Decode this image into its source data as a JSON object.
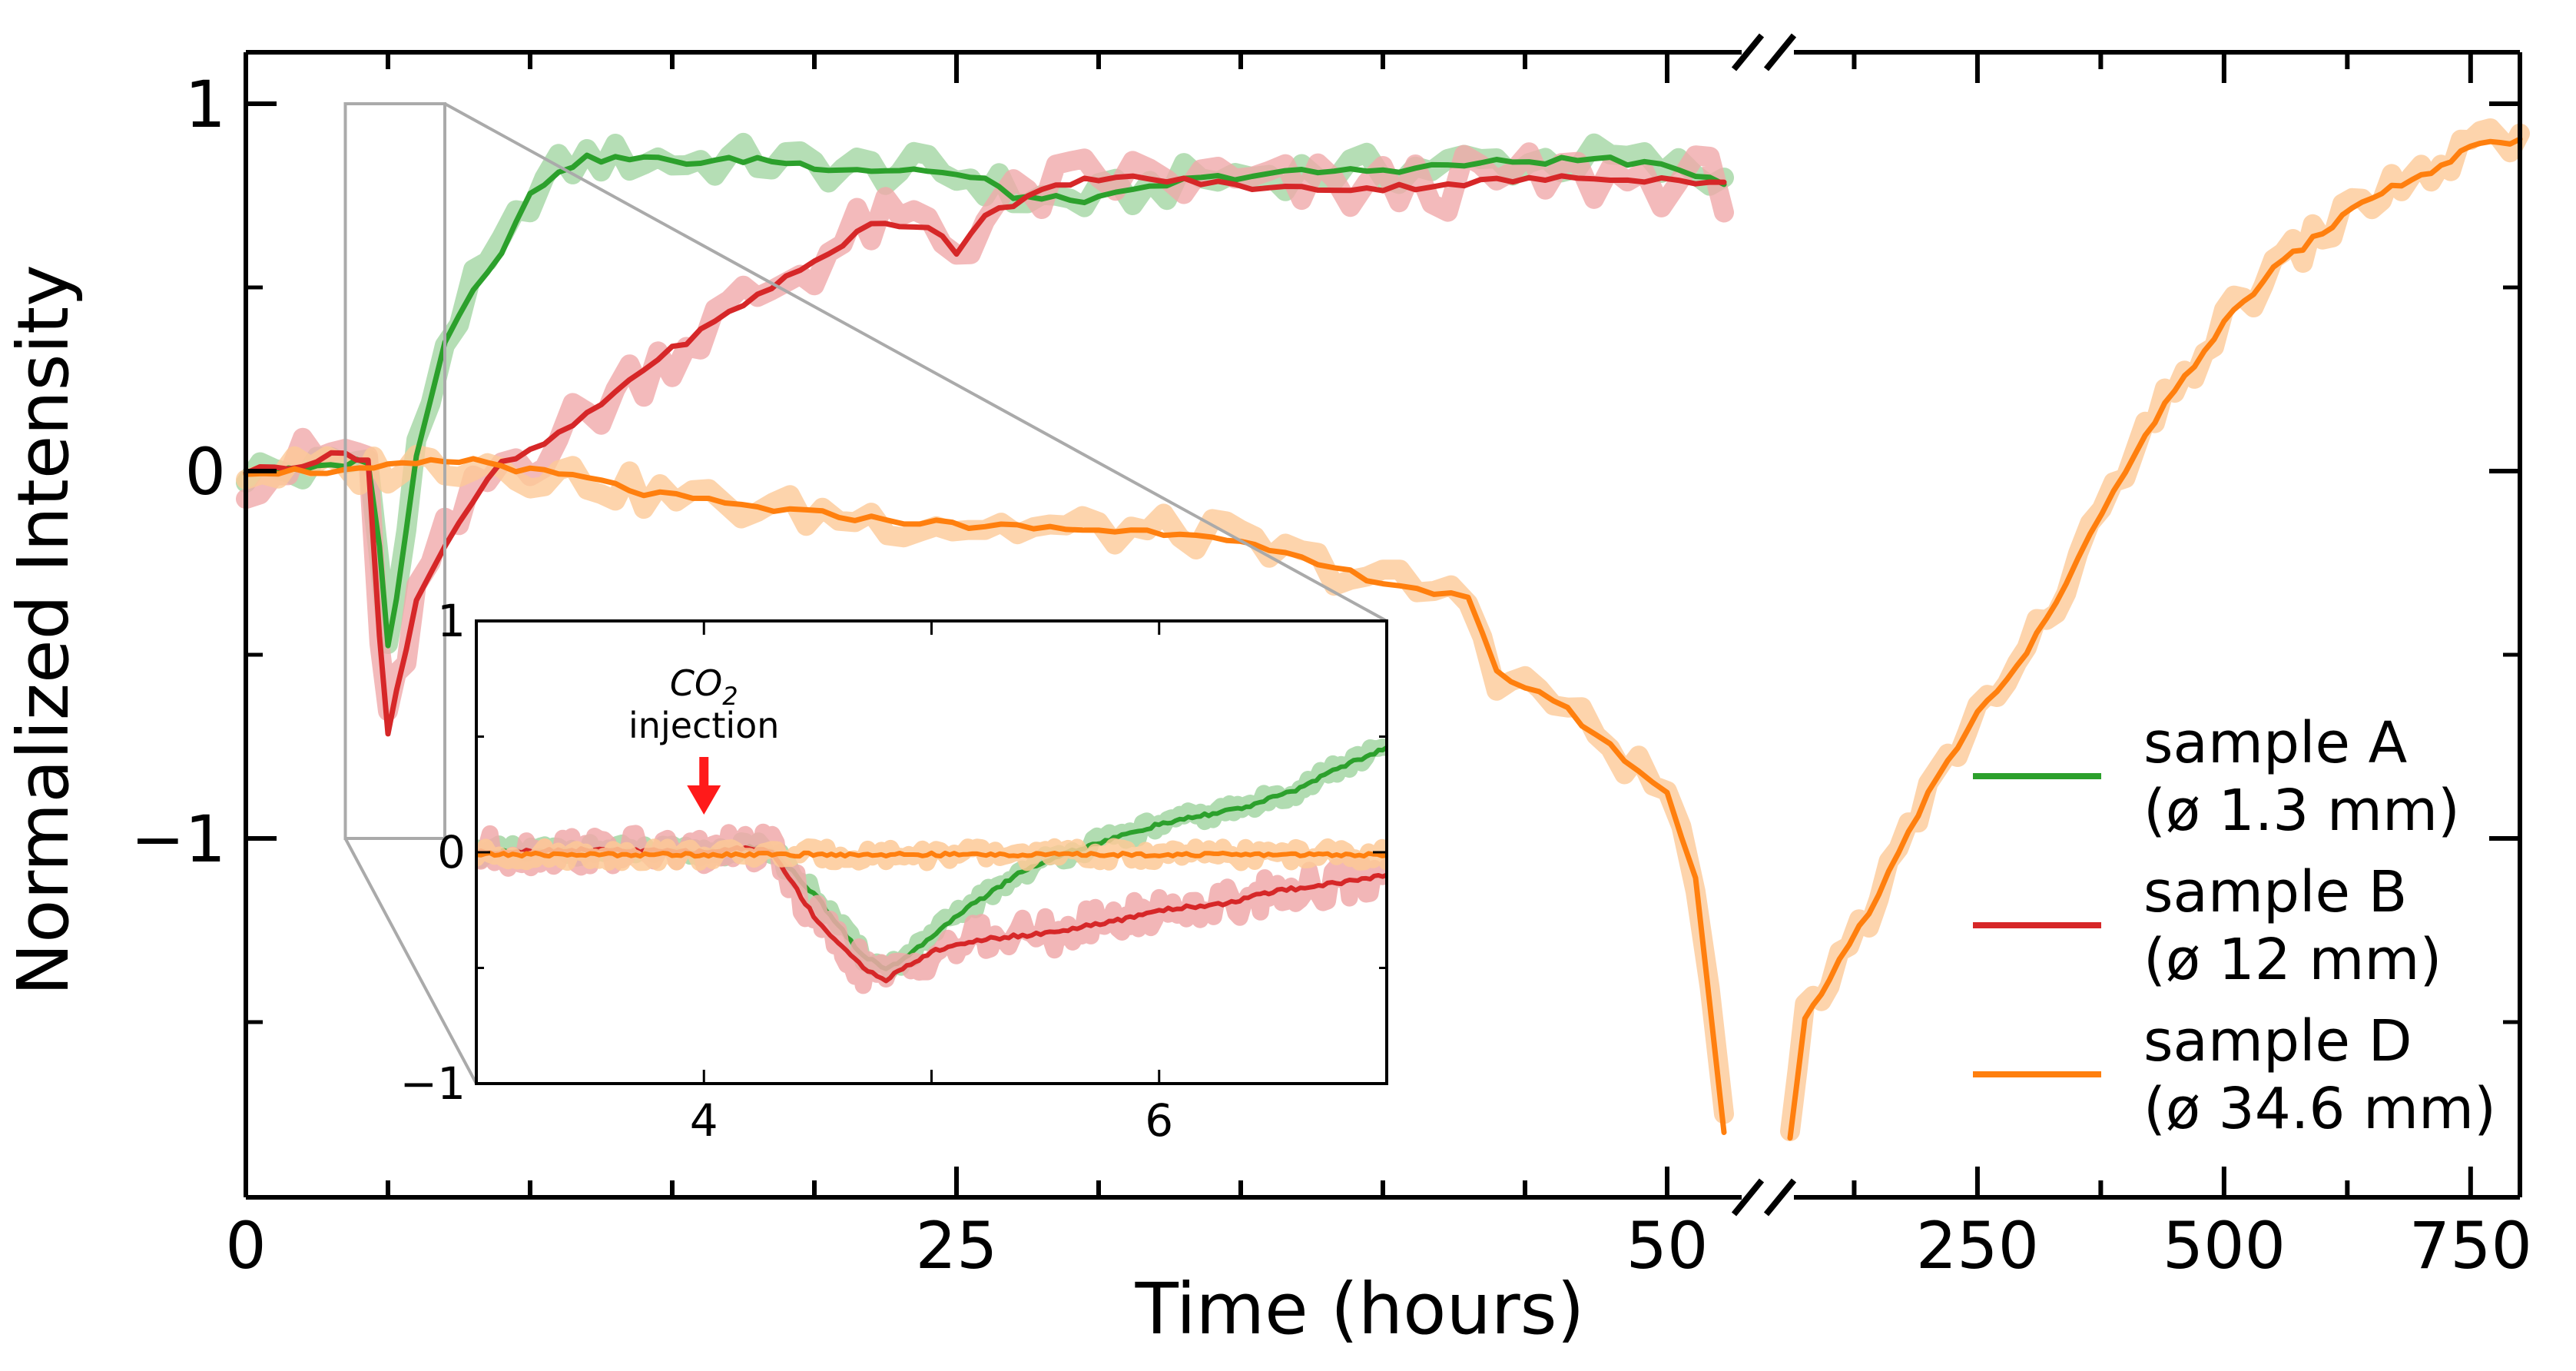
{
  "chart_data": {
    "type": "line",
    "xlabel": "Time (hours)",
    "ylabel": "Normalized Intensity",
    "grid": false,
    "legend_position": "right",
    "y_range": [
      -1.95,
      1.1
    ],
    "y_ticks": [
      1,
      0,
      -1
    ],
    "y_tick_labels": [
      "1",
      "0",
      "−1"
    ],
    "x_axis": {
      "segments": [
        {
          "range": [
            0,
            52
          ],
          "tick_labels": [
            {
              "value": 0,
              "label": "0"
            },
            {
              "value": 25,
              "label": "25"
            },
            {
              "value": 50,
              "label": "50"
            }
          ],
          "minor_step": 5
        },
        {
          "range": [
            60,
            800
          ],
          "tick_labels": [
            {
              "value": 250,
              "label": "250"
            },
            {
              "value": 500,
              "label": "500"
            },
            {
              "value": 750,
              "label": "750"
            }
          ],
          "minor_step": 125
        }
      ],
      "break_between": [
        52,
        60
      ]
    },
    "series": [
      {
        "name": "sample A",
        "legend_line2": "(ø 1.3 mm)",
        "color": "#2ca02c",
        "band_color": "#a3d6a3",
        "points": [
          [
            0,
            0.0
          ],
          [
            2,
            0.0
          ],
          [
            3.5,
            0.02
          ],
          [
            4.3,
            0.03
          ],
          [
            4.7,
            -0.2
          ],
          [
            5.0,
            -0.48
          ],
          [
            5.3,
            -0.35
          ],
          [
            6,
            0.05
          ],
          [
            7,
            0.35
          ],
          [
            8,
            0.5
          ],
          [
            9,
            0.6
          ],
          [
            10,
            0.75
          ],
          [
            11,
            0.82
          ],
          [
            12,
            0.85
          ],
          [
            14,
            0.85
          ],
          [
            16,
            0.84
          ],
          [
            18,
            0.85
          ],
          [
            20,
            0.83
          ],
          [
            22,
            0.82
          ],
          [
            24,
            0.82
          ],
          [
            26,
            0.79
          ],
          [
            27,
            0.75
          ],
          [
            28,
            0.74
          ],
          [
            30,
            0.74
          ],
          [
            33,
            0.79
          ],
          [
            36,
            0.81
          ],
          [
            40,
            0.82
          ],
          [
            44,
            0.84
          ],
          [
            48,
            0.85
          ],
          [
            51,
            0.81
          ],
          [
            52,
            0.79
          ]
        ]
      },
      {
        "name": "sample B",
        "legend_line2": "(ø 12 mm)",
        "color": "#d62728",
        "band_color": "#f0a9aa",
        "points": [
          [
            0,
            0.0
          ],
          [
            2,
            0.02
          ],
          [
            3.5,
            0.05
          ],
          [
            4.3,
            0.03
          ],
          [
            4.7,
            -0.45
          ],
          [
            5.0,
            -0.72
          ],
          [
            5.3,
            -0.6
          ],
          [
            6,
            -0.35
          ],
          [
            7,
            -0.2
          ],
          [
            8,
            -0.08
          ],
          [
            9,
            0.02
          ],
          [
            10,
            0.05
          ],
          [
            12,
            0.15
          ],
          [
            14,
            0.28
          ],
          [
            16,
            0.38
          ],
          [
            18,
            0.48
          ],
          [
            20,
            0.57
          ],
          [
            22,
            0.67
          ],
          [
            24,
            0.67
          ],
          [
            25,
            0.6
          ],
          [
            26,
            0.7
          ],
          [
            28,
            0.76
          ],
          [
            30,
            0.8
          ],
          [
            33,
            0.79
          ],
          [
            36,
            0.77
          ],
          [
            40,
            0.77
          ],
          [
            44,
            0.79
          ],
          [
            48,
            0.8
          ],
          [
            51,
            0.79
          ],
          [
            52,
            0.78
          ]
        ]
      },
      {
        "name": "sample D",
        "legend_line2": "(ø 34.6 mm)",
        "color": "#ff7f0e",
        "band_color": "#fdc997",
        "points": [
          [
            0,
            0.0
          ],
          [
            4,
            0.0
          ],
          [
            6,
            0.02
          ],
          [
            8,
            0.03
          ],
          [
            10,
            0.0
          ],
          [
            12,
            -0.02
          ],
          [
            14,
            -0.06
          ],
          [
            18,
            -0.1
          ],
          [
            22,
            -0.13
          ],
          [
            26,
            -0.15
          ],
          [
            30,
            -0.16
          ],
          [
            34,
            -0.17
          ],
          [
            36,
            -0.22
          ],
          [
            40,
            -0.3
          ],
          [
            43,
            -0.35
          ],
          [
            44,
            -0.55
          ],
          [
            46,
            -0.62
          ],
          [
            48,
            -0.75
          ],
          [
            50,
            -0.88
          ],
          [
            51,
            -1.1
          ],
          [
            51.5,
            -1.45
          ],
          [
            52,
            -1.8
          ],
          [
            60,
            -1.82
          ],
          [
            75,
            -1.5
          ],
          [
            100,
            -1.38
          ],
          [
            150,
            -1.15
          ],
          [
            200,
            -0.88
          ],
          [
            250,
            -0.66
          ],
          [
            300,
            -0.5
          ],
          [
            340,
            -0.3
          ],
          [
            400,
            0.0
          ],
          [
            450,
            0.22
          ],
          [
            500,
            0.4
          ],
          [
            550,
            0.55
          ],
          [
            600,
            0.65
          ],
          [
            650,
            0.75
          ],
          [
            700,
            0.8
          ],
          [
            750,
            0.88
          ],
          [
            800,
            0.9
          ]
        ]
      }
    ],
    "inset": {
      "x_range": [
        3,
        7
      ],
      "y_range": [
        -1,
        1
      ],
      "x_tick_labels": [
        {
          "value": 4,
          "label": "4"
        },
        {
          "value": 6,
          "label": "6"
        }
      ],
      "y_tick_labels": [
        {
          "value": 1,
          "label": "1"
        },
        {
          "value": 0,
          "label": "0"
        },
        {
          "value": -1,
          "label": "−1"
        }
      ],
      "zoom_box": {
        "x_range": [
          3.5,
          7.0
        ],
        "y_range": [
          -1,
          1
        ]
      },
      "annotation": {
        "line1": "CO",
        "subscript": "2",
        "line2": "injection",
        "at_x": 4.0
      },
      "series": [
        {
          "name": "sample A",
          "points": [
            [
              3,
              0.0
            ],
            [
              3.5,
              0.01
            ],
            [
              4,
              0.0
            ],
            [
              4.2,
              0.02
            ],
            [
              4.3,
              0.01
            ],
            [
              4.5,
              -0.2
            ],
            [
              4.7,
              -0.45
            ],
            [
              4.8,
              -0.5
            ],
            [
              4.9,
              -0.45
            ],
            [
              5.1,
              -0.28
            ],
            [
              5.4,
              -0.08
            ],
            [
              5.6,
              0.0
            ],
            [
              5.8,
              0.06
            ],
            [
              6.0,
              0.12
            ],
            [
              6.2,
              0.16
            ],
            [
              6.4,
              0.2
            ],
            [
              6.6,
              0.27
            ],
            [
              6.8,
              0.37
            ],
            [
              7.0,
              0.45
            ]
          ]
        },
        {
          "name": "sample B",
          "points": [
            [
              3,
              0.0
            ],
            [
              3.5,
              0.01
            ],
            [
              4,
              0.0
            ],
            [
              4.2,
              0.02
            ],
            [
              4.3,
              0.0
            ],
            [
              4.5,
              -0.3
            ],
            [
              4.7,
              -0.5
            ],
            [
              4.8,
              -0.55
            ],
            [
              5.0,
              -0.43
            ],
            [
              5.2,
              -0.38
            ],
            [
              5.5,
              -0.35
            ],
            [
              5.8,
              -0.3
            ],
            [
              6.0,
              -0.25
            ],
            [
              6.3,
              -0.22
            ],
            [
              6.5,
              -0.17
            ],
            [
              6.8,
              -0.13
            ],
            [
              7.0,
              -0.1
            ]
          ]
        },
        {
          "name": "sample D",
          "points": [
            [
              3,
              -0.01
            ],
            [
              4,
              -0.01
            ],
            [
              5,
              -0.01
            ],
            [
              6,
              -0.01
            ],
            [
              7,
              -0.01
            ]
          ]
        }
      ]
    }
  }
}
